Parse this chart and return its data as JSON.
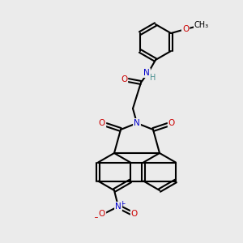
{
  "bg_color": "#ebebeb",
  "figsize": [
    3.0,
    3.0
  ],
  "dpi": 100,
  "bond_color": "#000000",
  "bond_width": 1.5,
  "atom_colors": {
    "O": "#cc0000",
    "N": "#0000cc",
    "C": "#000000",
    "H": "#4a9090"
  },
  "font_size": 7.5
}
